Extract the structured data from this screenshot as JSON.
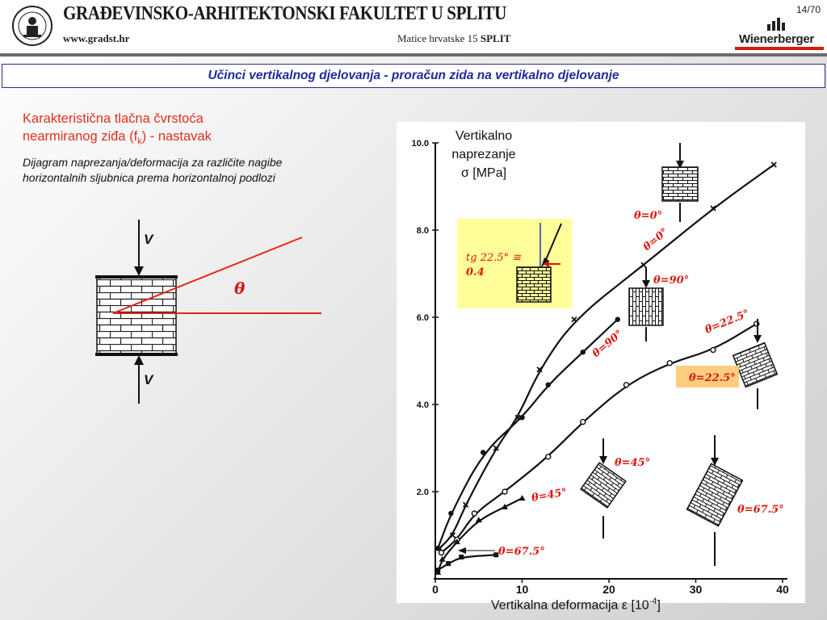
{
  "header": {
    "institution": "GRAĐEVINSKO-ARHITEKTONSKI FAKULTET U SPLITU",
    "url": "www.gradst.hr",
    "address": "Matice hrvatske 15",
    "city": "SPLIT",
    "page": "14/70",
    "brand": "Wienerberger"
  },
  "slide": {
    "title": "Učinci vertikalnog djelovanja - proračun zida na vertikalno djelovanje",
    "heading_line1": "Karakteristična tlačna čvrstoća",
    "heading_line2_pre": "nearmiranog ziđa (f",
    "heading_sub": "k",
    "heading_line2_post": ") - nastavak",
    "desc_line1": "Dijagram naprezanja/deformacija za različite nagibe",
    "desc_line2": "horizontalnih sljubnica prema horizontalnoj podlozi"
  },
  "left_figure": {
    "load_top": "V",
    "load_bottom": "V",
    "angle": "θ"
  },
  "chart_data": {
    "type": "scatter",
    "ytitle_line1": "Vertikalno",
    "ytitle_line2": "naprezanje",
    "ytitle_line3": "σ [MPa]",
    "xtitle_pre": "Vertikalna deformacija ε [10",
    "xtitle_sup": "-4",
    "xtitle_post": "]",
    "xlim": [
      0,
      40
    ],
    "ylim": [
      0,
      10
    ],
    "x_ticks": [
      "0",
      "10",
      "20",
      "30",
      "40"
    ],
    "y_ticks": [
      "2.0",
      "4.0",
      "6.0",
      "8.0",
      "10.0"
    ],
    "series": [
      {
        "label": "θ=0°",
        "marker": "x",
        "points": [
          [
            0.5,
            0.7
          ],
          [
            2,
            1.0
          ],
          [
            3.5,
            1.7
          ],
          [
            7,
            3.0
          ],
          [
            9.5,
            3.7
          ],
          [
            12,
            4.8
          ],
          [
            16,
            5.95
          ],
          [
            24,
            7.2
          ],
          [
            32,
            8.5
          ],
          [
            39,
            9.5
          ]
        ]
      },
      {
        "label": "θ=90°",
        "marker": "dot",
        "points": [
          [
            0.3,
            0.7
          ],
          [
            1.8,
            1.5
          ],
          [
            5.5,
            2.9
          ],
          [
            10,
            3.7
          ],
          [
            13,
            4.45
          ],
          [
            17,
            5.2
          ],
          [
            21,
            5.95
          ]
        ]
      },
      {
        "label": "θ=22.5°",
        "marker": "circle",
        "points": [
          [
            0.7,
            0.6
          ],
          [
            2.5,
            0.9
          ],
          [
            4.5,
            1.5
          ],
          [
            8,
            2.0
          ],
          [
            13,
            2.8
          ],
          [
            17,
            3.6
          ],
          [
            22,
            4.45
          ],
          [
            27,
            4.95
          ],
          [
            32,
            5.25
          ],
          [
            37,
            5.85
          ]
        ]
      },
      {
        "label": "θ=45°",
        "marker": "triangle",
        "points": [
          [
            0.3,
            0.15
          ],
          [
            0.8,
            0.45
          ],
          [
            2.5,
            0.85
          ],
          [
            5,
            1.35
          ],
          [
            8,
            1.65
          ],
          [
            10,
            1.85
          ]
        ]
      },
      {
        "label": "θ=67.5°",
        "marker": "square",
        "points": [
          [
            0.3,
            0.2
          ],
          [
            1.5,
            0.35
          ],
          [
            3,
            0.5
          ],
          [
            7,
            0.55
          ]
        ]
      }
    ],
    "annotations": {
      "theta_0_upper": "θ=0°",
      "theta_0_lower": "θ=0°",
      "theta_90_a": "θ=90°",
      "theta_90_b": "θ=90°",
      "theta_22_a": "θ=22.5°",
      "theta_22_b": "θ=22.5°",
      "theta_45_a": "θ=45°",
      "theta_45_b": "θ=45°",
      "theta_67_a": "θ=67.5°",
      "theta_67_b": "θ=67.5°",
      "tg_line1": "tg 22.5° ≅",
      "tg_line2": "0.4"
    }
  },
  "colors": {
    "title_blue": "#1f2a9c",
    "heading_red": "#e0301e",
    "annot_red": "#d8190e",
    "inset_yellow": "#ffff99",
    "label_orange": "#ffcc80"
  }
}
